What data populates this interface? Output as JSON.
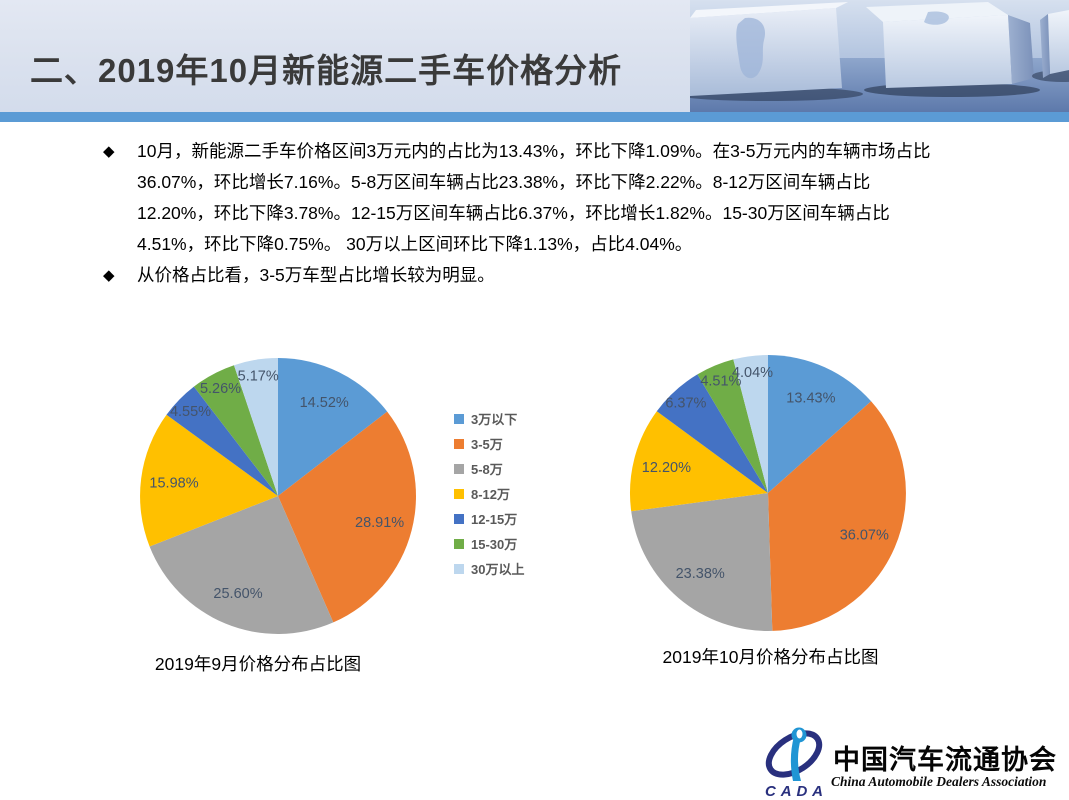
{
  "header": {
    "title": "二、2019年10月新能源二手车价格分析"
  },
  "bullets": [
    {
      "marker": "◆",
      "lines": [
        "10月，新能源二手车价格区间3万元内的占比为13.43%，环比下降1.09%。在3-5万元内的车辆市场占比",
        "36.07%，环比增长7.16%。5-8万区间车辆占比23.38%，环比下降2.22%。8-12万区间车辆占比",
        "12.20%，环比下降3.78%。12-15万区间车辆占比6.37%，环比增长1.82%。15-30万区间车辆占比",
        "4.51%，环比下降0.75%。 30万以上区间环比下降1.13%，占比4.04%。"
      ]
    },
    {
      "marker": "◆",
      "lines": [
        "从价格占比看，3-5万车型占比增长较为明显。"
      ]
    }
  ],
  "palette": {
    "accent_blue": "#5B9BD5",
    "accent_orange": "#ED7D31",
    "accent_gray": "#A5A5A5",
    "accent_yellow": "#FFC000",
    "accent_dark_blue": "#4472C4",
    "accent_green": "#70AD47",
    "accent_light_blue": "#BDD7EE",
    "divider_bar": "#5B9BD5",
    "pie_label_text": "#44546A",
    "legend_text": "#595959"
  },
  "legend": {
    "items": [
      {
        "label": "3万以下",
        "color": "#5B9BD5"
      },
      {
        "label": "3-5万",
        "color": "#ED7D31"
      },
      {
        "label": "5-8万",
        "color": "#A5A5A5"
      },
      {
        "label": "8-12万",
        "color": "#FFC000"
      },
      {
        "label": "12-15万",
        "color": "#4472C4"
      },
      {
        "label": "15-30万",
        "color": "#70AD47"
      },
      {
        "label": "30万以上",
        "color": "#BDD7EE"
      }
    ]
  },
  "chart_data": [
    {
      "type": "pie",
      "title": "2019年9月价格分布占比图",
      "categories": [
        "3万以下",
        "3-5万",
        "5-8万",
        "8-12万",
        "12-15万",
        "15-30万",
        "30万以上"
      ],
      "values": [
        14.52,
        28.91,
        25.6,
        15.98,
        4.55,
        5.26,
        5.17
      ],
      "labels": [
        "14.52%",
        "28.91%",
        "25.60%",
        "15.98%",
        "4.55%",
        "5.26%",
        "5.17%"
      ],
      "colors": [
        "#5B9BD5",
        "#ED7D31",
        "#A5A5A5",
        "#FFC000",
        "#4472C4",
        "#70AD47",
        "#BDD7EE"
      ],
      "start_angle_deg": 0,
      "direction": "clockwise",
      "legend_position": "right-of-chart"
    },
    {
      "type": "pie",
      "title": "2019年10月价格分布占比图",
      "categories": [
        "3万以下",
        "3-5万",
        "5-8万",
        "8-12万",
        "12-15万",
        "15-30万",
        "30万以上"
      ],
      "values": [
        13.43,
        36.07,
        23.38,
        12.2,
        6.37,
        4.51,
        4.04
      ],
      "labels": [
        "13.43%",
        "36.07%",
        "23.38%",
        "12.20%",
        "6.37%",
        "4.51%",
        "4.04%"
      ],
      "colors": [
        "#5B9BD5",
        "#ED7D31",
        "#A5A5A5",
        "#FFC000",
        "#4472C4",
        "#70AD47",
        "#BDD7EE"
      ],
      "start_angle_deg": 0,
      "direction": "clockwise",
      "legend_position": "left-of-chart"
    }
  ],
  "logo": {
    "cada": "CADA",
    "name_cn": "中国汽车流通协会",
    "name_en": "China  Automobile  Dealers  Association"
  }
}
